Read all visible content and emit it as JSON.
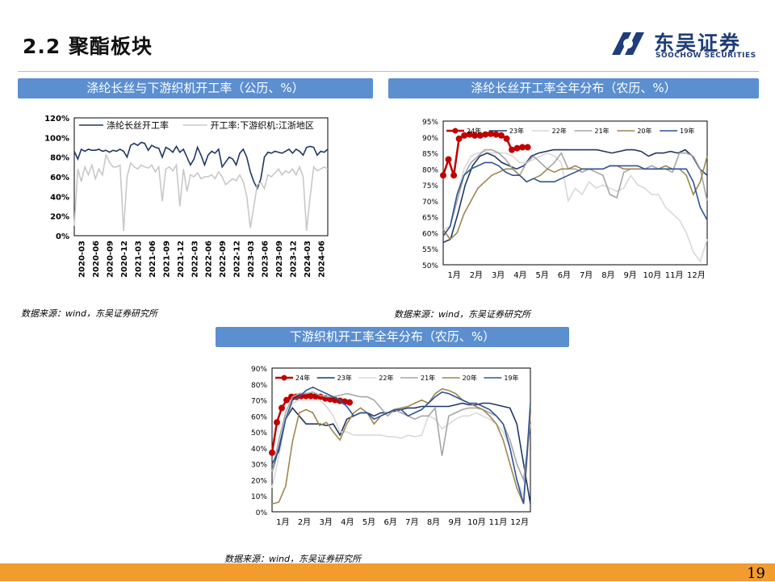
{
  "page": {
    "title": "2.2 聚酯板块",
    "page_number": "19"
  },
  "logo": {
    "cn": "东吴证券",
    "en": "SOOCHOW SECURITIES"
  },
  "colors": {
    "banner": "#5b8fd0",
    "footer": "#f29b2f",
    "navy": "#1f3864",
    "red": "#c00000"
  },
  "banners": {
    "b1": "涤纶长丝与下游织机开工率（公历、%）",
    "b2": "涤纶长丝开工率全年分布（农历、%）",
    "b3": "下游织机开工率全年分布（农历、%）"
  },
  "sources": {
    "s1": "数据来源：wind，东吴证券研究所",
    "s2": "数据来源：wind，东吴证券研究所",
    "s3": "数据来源：wind，东吴证券研究所"
  },
  "chart_data": [
    {
      "type": "line",
      "xlabels": [
        "2020-03",
        "2020-06",
        "2020-09",
        "2020-12",
        "2021-03",
        "2021-06",
        "2021-09",
        "2021-12",
        "2022-03",
        "2022-06",
        "2022-09",
        "2022-12",
        "2023-03",
        "2023-06",
        "2023-09",
        "2023-12",
        "2024-03",
        "2024-06"
      ],
      "yticks": [
        "0%",
        "20%",
        "40%",
        "60%",
        "80%",
        "100%",
        "120%"
      ],
      "ylim": [
        0,
        120
      ],
      "series": [
        {
          "name": "涤纶长丝开工率",
          "color": "#1f3864",
          "values": [
            86,
            78,
            88,
            86,
            88,
            87,
            87,
            88,
            86,
            87,
            85,
            87,
            86,
            88,
            86,
            80,
            92,
            94,
            92,
            95,
            94,
            87,
            92,
            90,
            89,
            80,
            90,
            88,
            85,
            91,
            85,
            88,
            80,
            72,
            78,
            90,
            82,
            72,
            82,
            86,
            84,
            88,
            70,
            75,
            80,
            78,
            72,
            84,
            88,
            80,
            65,
            55,
            48,
            58,
            80,
            85,
            84,
            86,
            85,
            84,
            86,
            88,
            84,
            88,
            86,
            82,
            90,
            91,
            90,
            82,
            86,
            85,
            88
          ]
        },
        {
          "name": "开工率:下游织机:江浙地区",
          "color": "#c8c8c8",
          "values": [
            10,
            68,
            55,
            70,
            62,
            72,
            58,
            68,
            62,
            82,
            75,
            70,
            70,
            72,
            5,
            60,
            74,
            70,
            68,
            72,
            70,
            69,
            72,
            65,
            70,
            35,
            68,
            70,
            66,
            72,
            30,
            68,
            45,
            62,
            60,
            64,
            58,
            60,
            60,
            62,
            58,
            65,
            60,
            52,
            55,
            58,
            56,
            62,
            55,
            40,
            8,
            30,
            52,
            54,
            48,
            62,
            60,
            64,
            68,
            62,
            66,
            64,
            68,
            62,
            70,
            60,
            5,
            40,
            70,
            66,
            68,
            70,
            68
          ]
        }
      ]
    },
    {
      "type": "line",
      "xlabels": [
        "1月",
        "2月",
        "3月",
        "4月",
        "5月",
        "6月",
        "7月",
        "8月",
        "9月",
        "10月",
        "11月",
        "12月"
      ],
      "yticks": [
        "50%",
        "55%",
        "60%",
        "65%",
        "70%",
        "75%",
        "80%",
        "85%",
        "90%",
        "95%"
      ],
      "ylim": [
        50,
        95
      ],
      "legend": [
        "24年",
        "23年",
        "22年",
        "21年",
        "20年",
        "19年"
      ],
      "series": [
        {
          "name": "24年",
          "color": "#c00000",
          "values": [
            78,
            83,
            78,
            89.5,
            90.5,
            90.8,
            90.5,
            90.5,
            90.8,
            91,
            90.8,
            90.5,
            89.5,
            86,
            86.5,
            86.8,
            86.8
          ]
        },
        {
          "name": "23年",
          "color": "#1f3864",
          "values": [
            57,
            58,
            66,
            75,
            81,
            84,
            85,
            84,
            82,
            81,
            80,
            81,
            84,
            85,
            85.5,
            86,
            86,
            86,
            86,
            86,
            86,
            86,
            85.5,
            85,
            85.5,
            86,
            86,
            85.5,
            84,
            85,
            85,
            85.5,
            85,
            86,
            84,
            80,
            78
          ]
        },
        {
          "name": "22年",
          "color": "#d9d9d9",
          "values": [
            61,
            62,
            72,
            80,
            84,
            85,
            85.5,
            85,
            85,
            85,
            84,
            82,
            82,
            83,
            84,
            85,
            84,
            82,
            70,
            74,
            72,
            76,
            74,
            75,
            74,
            73,
            74,
            78,
            75,
            74,
            72,
            72,
            68,
            66,
            64,
            60,
            54,
            51,
            58
          ]
        },
        {
          "name": "21年",
          "color": "#a6a6a6",
          "values": [
            59,
            62,
            70,
            78,
            82,
            84,
            86,
            86,
            85,
            83,
            80,
            78,
            82,
            84,
            82,
            80,
            82,
            85,
            80,
            80,
            79,
            80,
            79,
            78,
            72,
            71,
            79,
            80,
            80,
            80,
            81,
            80,
            80,
            79,
            85,
            85,
            84,
            80,
            70
          ]
        },
        {
          "name": "20年",
          "color": "#9c8751",
          "values": [
            61,
            58,
            60,
            66,
            70,
            74,
            76,
            78,
            79,
            80,
            80,
            78,
            76,
            77,
            78,
            80,
            79,
            80,
            80,
            81,
            80,
            80,
            80,
            80,
            81,
            81,
            80,
            80,
            80,
            80,
            80,
            80,
            81,
            80,
            80,
            78,
            72,
            76,
            84
          ]
        },
        {
          "name": "19年",
          "color": "#2f5597",
          "values": [
            59,
            62,
            72,
            78,
            80,
            81,
            82,
            82,
            81,
            79,
            78,
            78,
            76,
            77,
            76,
            76,
            76,
            77,
            78,
            79,
            80,
            80,
            80,
            80,
            81,
            81,
            81,
            81,
            81,
            80,
            80,
            80,
            80,
            80,
            80,
            80,
            76,
            68,
            64
          ]
        }
      ]
    },
    {
      "type": "line",
      "xlabels": [
        "1月",
        "2月",
        "3月",
        "4月",
        "5月",
        "6月",
        "7月",
        "8月",
        "9月",
        "10月",
        "11月",
        "12月"
      ],
      "yticks": [
        "0%",
        "10%",
        "20%",
        "30%",
        "40%",
        "50%",
        "60%",
        "70%",
        "80%",
        "90%"
      ],
      "ylim": [
        0,
        90
      ],
      "legend": [
        "24年",
        "23年",
        "22年",
        "21年",
        "20年",
        "19年"
      ],
      "series": [
        {
          "name": "24年",
          "color": "#c00000",
          "values": [
            37,
            56,
            65,
            70,
            72,
            72,
            72.5,
            72.5,
            72.5,
            72.3,
            72,
            71,
            70.5,
            70,
            69.5,
            69,
            68.5
          ]
        },
        {
          "name": "23年",
          "color": "#1f3864",
          "values": [
            25,
            40,
            58,
            65,
            60,
            55,
            55,
            55,
            54,
            55,
            48,
            58,
            60,
            62,
            62,
            60,
            62,
            62,
            63,
            64,
            65,
            65,
            66,
            66,
            66,
            66,
            66,
            67,
            68,
            67,
            67,
            68,
            68,
            67,
            66,
            65,
            55,
            30,
            5
          ]
        },
        {
          "name": "22年",
          "color": "#d9d9d9",
          "values": [
            15,
            35,
            58,
            68,
            70,
            70,
            70,
            70,
            66,
            60,
            50,
            50,
            48,
            48,
            48,
            48,
            48,
            47,
            47,
            46,
            48,
            47,
            48,
            60,
            58,
            52,
            55,
            58,
            60,
            60,
            62,
            60,
            58,
            55,
            50,
            40,
            20,
            10,
            60
          ]
        },
        {
          "name": "21年",
          "color": "#a6a6a6",
          "values": [
            25,
            45,
            62,
            72,
            74,
            74,
            75,
            73,
            72,
            72,
            73,
            74,
            73,
            72,
            72,
            70,
            65,
            60,
            64,
            62,
            60,
            58,
            60,
            60,
            65,
            35,
            60,
            62,
            64,
            65,
            65,
            64,
            62,
            60,
            55,
            45,
            30,
            20,
            55
          ]
        },
        {
          "name": "20年",
          "color": "#9c8751",
          "values": [
            5,
            6,
            16,
            44,
            62,
            64,
            62,
            54,
            56,
            50,
            45,
            55,
            62,
            65,
            62,
            55,
            60,
            62,
            64,
            65,
            66,
            68,
            70,
            68,
            74,
            77,
            76,
            74,
            70,
            68,
            66,
            64,
            60,
            55,
            45,
            30,
            15,
            5,
            62
          ]
        },
        {
          "name": "19年",
          "color": "#2f5597",
          "values": [
            30,
            38,
            58,
            70,
            72,
            76,
            78,
            76,
            74,
            72,
            70,
            66,
            60,
            62,
            62,
            58,
            60,
            62,
            64,
            64,
            60,
            62,
            64,
            68,
            72,
            75,
            74,
            72,
            70,
            68,
            68,
            66,
            64,
            60,
            55,
            40,
            20,
            5,
            68
          ]
        }
      ]
    }
  ]
}
